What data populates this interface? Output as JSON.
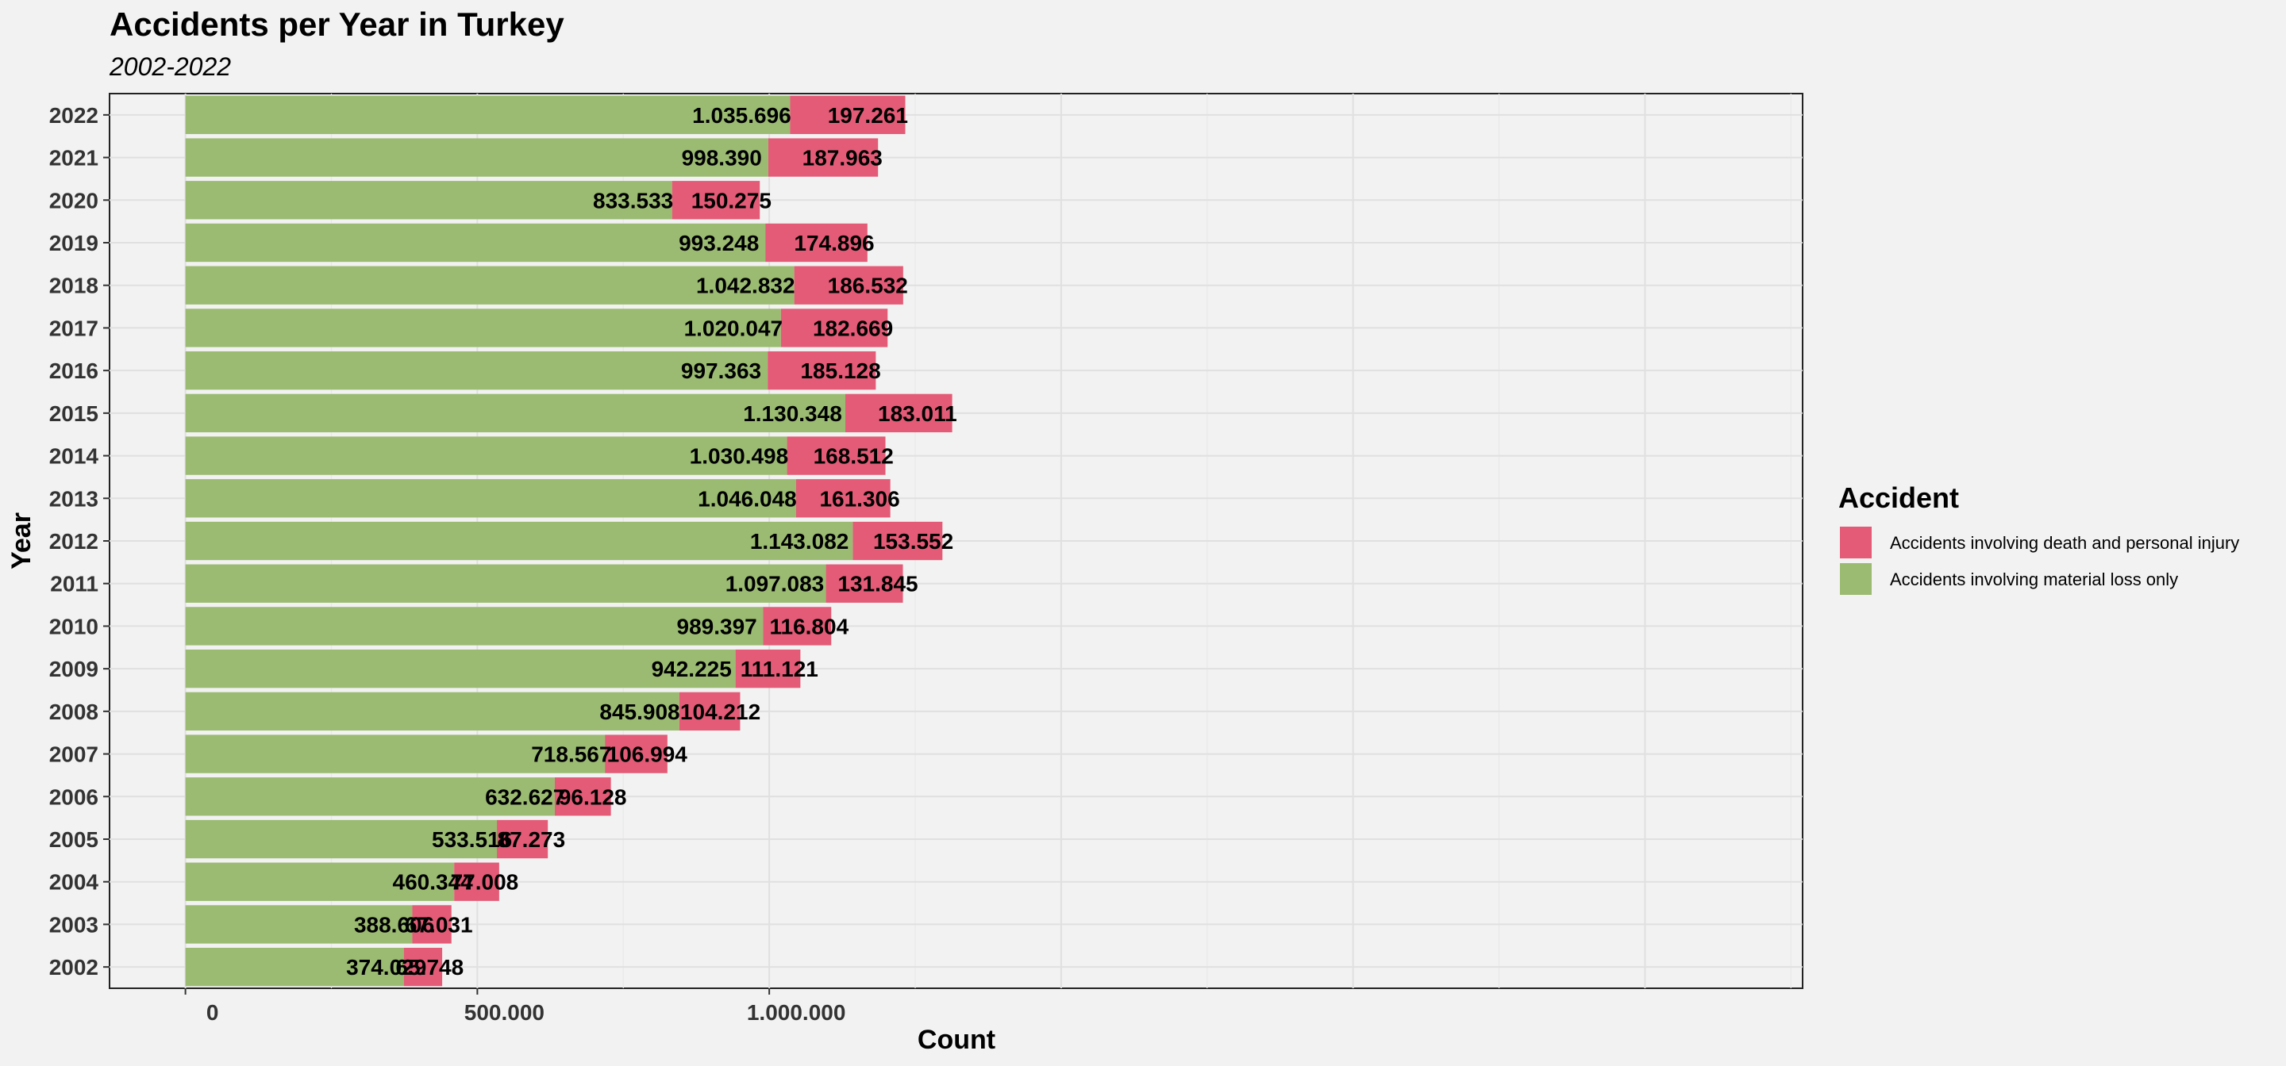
{
  "chart_data": {
    "type": "bar",
    "orientation": "horizontal",
    "stacked": true,
    "title": "Accidents per Year in Turkey",
    "subtitle": "2002-2022",
    "xlabel": "Count",
    "ylabel": "Year",
    "xlim": [
      -130000,
      2770000
    ],
    "x_ticks": [
      0,
      500000,
      1000000
    ],
    "x_tick_labels": [
      "0",
      "500.000",
      "1.000.000"
    ],
    "grid": true,
    "legend_title": "Accident",
    "legend_position": "right",
    "categories": [
      "2022",
      "2021",
      "2020",
      "2019",
      "2018",
      "2017",
      "2016",
      "2015",
      "2014",
      "2013",
      "2012",
      "2011",
      "2010",
      "2009",
      "2008",
      "2007",
      "2006",
      "2005",
      "2004",
      "2003",
      "2002"
    ],
    "series": [
      {
        "name": "Accidents involving material loss only",
        "color": "#9bbb72",
        "values": [
          1035696,
          998390,
          833533,
          993248,
          1042832,
          1020047,
          997363,
          1130348,
          1030498,
          1046048,
          1143082,
          1097083,
          989397,
          942225,
          845908,
          718567,
          632627,
          533516,
          460344,
          388606,
          374029
        ],
        "labels": [
          "1.035.696",
          "998.390",
          "833.533",
          "993.248",
          "1.042.832",
          "1.020.047",
          "997.363",
          "1.130.348",
          "1.030.498",
          "1.046.048",
          "1.143.082",
          "1.097.083",
          "989.397",
          "942.225",
          "845.908",
          "718.567",
          "632.627",
          "533.516",
          "460.344",
          "388.606",
          "374.029"
        ]
      },
      {
        "name": "Accidents involving death and personal injury",
        "color": "#e35b76",
        "values": [
          197261,
          187963,
          150275,
          174896,
          186532,
          182669,
          185128,
          183011,
          168512,
          161306,
          153552,
          131845,
          116804,
          111121,
          104212,
          106994,
          96128,
          87273,
          77008,
          67031,
          65748
        ],
        "labels": [
          "197.261",
          "187.963",
          "150.275",
          "174.896",
          "186.532",
          "182.669",
          "185.128",
          "183.011",
          "168.512",
          "161.306",
          "153.552",
          "131.845",
          "116.804",
          "111.121",
          "104.212",
          "106.994",
          "96.128",
          "87.273",
          "77.008",
          "67.031",
          "65.748"
        ]
      }
    ],
    "legend_order": [
      1,
      0
    ]
  }
}
